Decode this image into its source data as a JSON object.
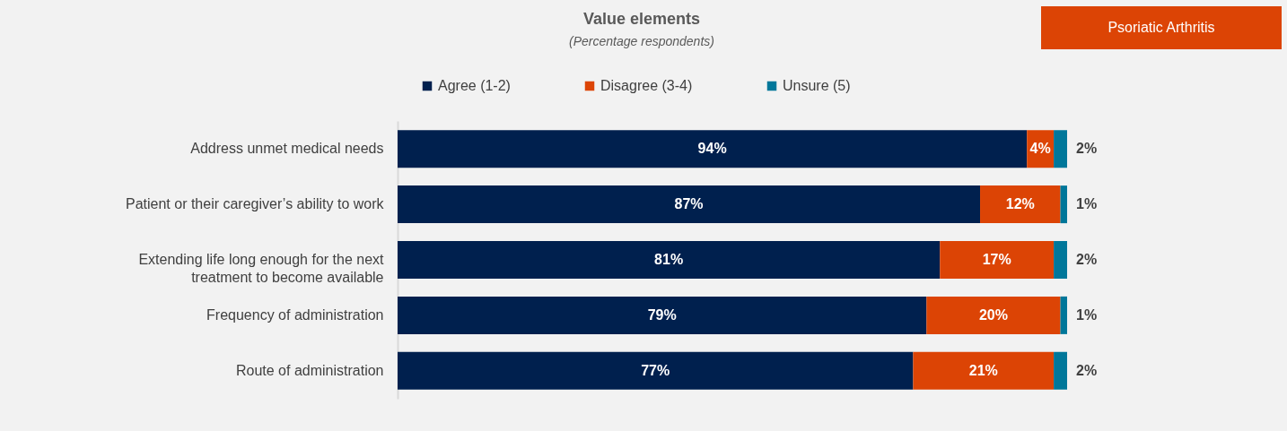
{
  "chart_data": {
    "type": "bar",
    "orientation": "horizontal",
    "stacked": true,
    "legend": "top",
    "grid": false,
    "title": "Value elements",
    "subtitle": "(Percentage respondents)",
    "annotations": [
      "Psoriatic Arthritis"
    ],
    "categories": [
      "Address unmet medical needs",
      "Patient or their caregiver’s ability to work",
      "Extending life long enough for the next\ntreatment to become available",
      "Frequency of administration",
      "Route of administration"
    ],
    "series": [
      {
        "name": "Agree (1-2)",
        "color": "#00204e",
        "values": [
          94,
          87,
          81,
          79,
          77
        ],
        "value_labels": [
          "94%",
          "87%",
          "81%",
          "79%",
          "77%"
        ]
      },
      {
        "name": "Disagree (3-4)",
        "color": "#dc4405",
        "values": [
          4,
          12,
          17,
          20,
          21
        ],
        "value_labels": [
          "4%",
          "12%",
          "17%",
          "20%",
          "21%"
        ]
      },
      {
        "name": "Unsure (5)",
        "color": "#00779a",
        "values": [
          2,
          1,
          2,
          1,
          2
        ],
        "value_labels": [
          "2%",
          "1%",
          "2%",
          "1%",
          "2%"
        ]
      }
    ]
  }
}
